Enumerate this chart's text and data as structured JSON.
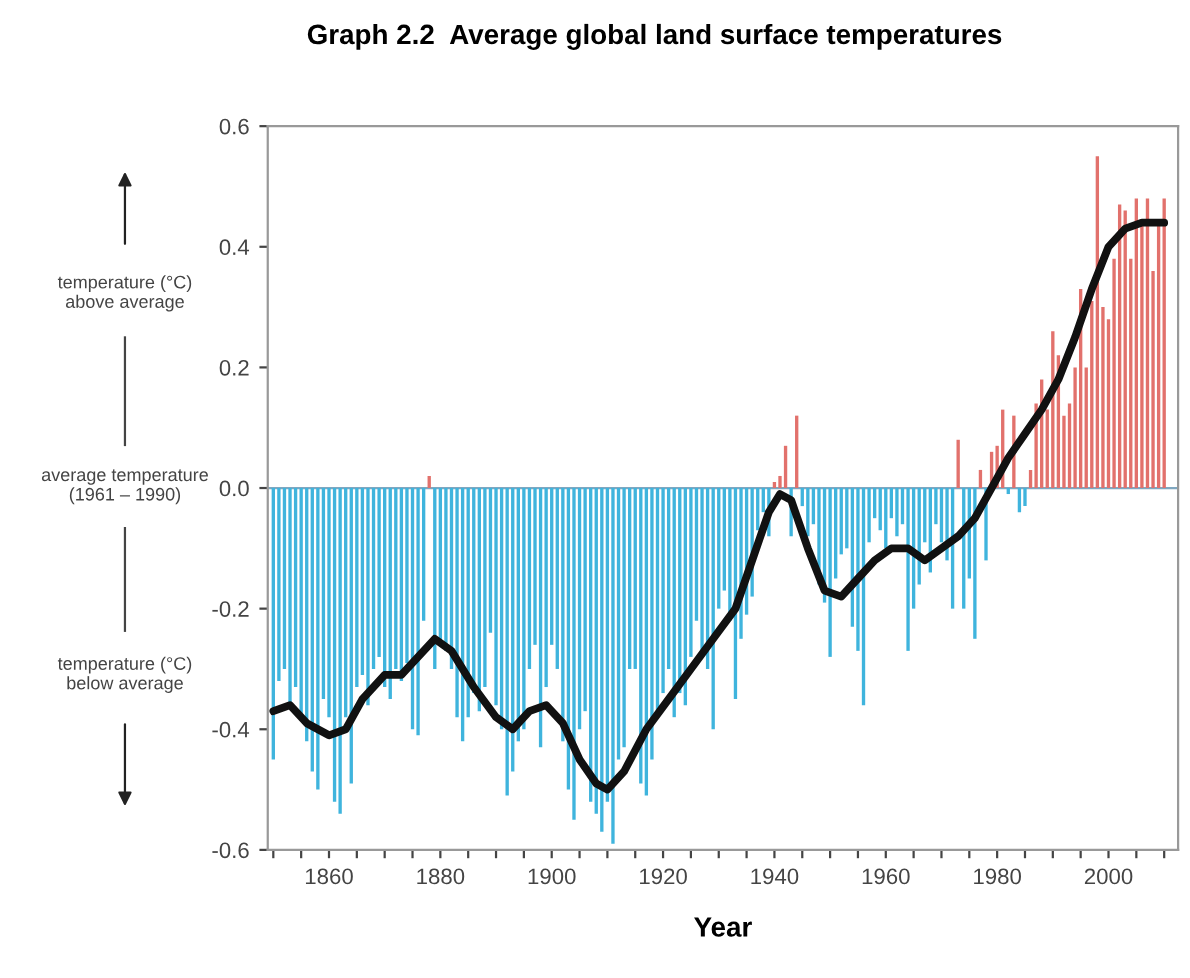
{
  "chart_data": {
    "type": "bar",
    "title": "Graph 2.2  Average global land surface temperatures",
    "xlabel": "Year",
    "annotations": [
      "temperature (°C)\nabove average",
      "average temperature\n(1961 – 1990)",
      "temperature (°C)\nbelow average"
    ],
    "x": [
      1850,
      1851,
      1852,
      1853,
      1854,
      1855,
      1856,
      1857,
      1858,
      1859,
      1860,
      1861,
      1862,
      1863,
      1864,
      1865,
      1866,
      1867,
      1868,
      1869,
      1870,
      1871,
      1872,
      1873,
      1874,
      1875,
      1876,
      1877,
      1878,
      1879,
      1880,
      1881,
      1882,
      1883,
      1884,
      1885,
      1886,
      1887,
      1888,
      1889,
      1890,
      1891,
      1892,
      1893,
      1894,
      1895,
      1896,
      1897,
      1898,
      1899,
      1900,
      1901,
      1902,
      1903,
      1904,
      1905,
      1906,
      1907,
      1908,
      1909,
      1910,
      1911,
      1912,
      1913,
      1914,
      1915,
      1916,
      1917,
      1918,
      1919,
      1920,
      1921,
      1922,
      1923,
      1924,
      1925,
      1926,
      1927,
      1928,
      1929,
      1930,
      1931,
      1932,
      1933,
      1934,
      1935,
      1936,
      1937,
      1938,
      1939,
      1940,
      1941,
      1942,
      1943,
      1944,
      1945,
      1946,
      1947,
      1948,
      1949,
      1950,
      1951,
      1952,
      1953,
      1954,
      1955,
      1956,
      1957,
      1958,
      1959,
      1960,
      1961,
      1962,
      1963,
      1964,
      1965,
      1966,
      1967,
      1968,
      1969,
      1970,
      1971,
      1972,
      1973,
      1974,
      1975,
      1976,
      1977,
      1978,
      1979,
      1980,
      1981,
      1982,
      1983,
      1984,
      1985,
      1986,
      1987,
      1988,
      1989,
      1990,
      1991,
      1992,
      1993,
      1994,
      1995,
      1996,
      1997,
      1998,
      1999,
      2000,
      2001,
      2002,
      2003,
      2004,
      2005,
      2006,
      2007,
      2008,
      2009,
      2010
    ],
    "values": [
      -0.45,
      -0.32,
      -0.3,
      -0.36,
      -0.33,
      -0.38,
      -0.42,
      -0.47,
      -0.5,
      -0.35,
      -0.38,
      -0.52,
      -0.54,
      -0.38,
      -0.49,
      -0.33,
      -0.31,
      -0.36,
      -0.3,
      -0.28,
      -0.33,
      -0.35,
      -0.3,
      -0.32,
      -0.29,
      -0.4,
      -0.41,
      -0.22,
      0.02,
      -0.3,
      -0.26,
      -0.27,
      -0.3,
      -0.38,
      -0.42,
      -0.38,
      -0.34,
      -0.37,
      -0.33,
      -0.24,
      -0.36,
      -0.4,
      -0.51,
      -0.47,
      -0.42,
      -0.4,
      -0.3,
      -0.26,
      -0.43,
      -0.33,
      -0.26,
      -0.3,
      -0.42,
      -0.5,
      -0.55,
      -0.4,
      -0.37,
      -0.52,
      -0.54,
      -0.57,
      -0.52,
      -0.59,
      -0.45,
      -0.43,
      -0.3,
      -0.3,
      -0.49,
      -0.51,
      -0.45,
      -0.38,
      -0.34,
      -0.3,
      -0.38,
      -0.34,
      -0.36,
      -0.28,
      -0.22,
      -0.28,
      -0.3,
      -0.4,
      -0.2,
      -0.17,
      -0.22,
      -0.35,
      -0.25,
      -0.21,
      -0.18,
      -0.07,
      -0.04,
      -0.08,
      0.01,
      0.02,
      0.07,
      -0.08,
      0.12,
      -0.03,
      -0.08,
      -0.06,
      -0.16,
      -0.19,
      -0.28,
      -0.15,
      -0.11,
      -0.1,
      -0.23,
      -0.27,
      -0.36,
      -0.09,
      -0.05,
      -0.07,
      -0.1,
      -0.05,
      -0.08,
      -0.06,
      -0.27,
      -0.2,
      -0.16,
      -0.09,
      -0.14,
      -0.06,
      -0.09,
      -0.12,
      -0.2,
      0.08,
      -0.2,
      -0.15,
      -0.25,
      0.03,
      -0.12,
      0.06,
      0.07,
      0.13,
      -0.01,
      0.12,
      -0.04,
      -0.03,
      0.03,
      0.14,
      0.18,
      0.13,
      0.26,
      0.22,
      0.12,
      0.14,
      0.2,
      0.33,
      0.2,
      0.31,
      0.55,
      0.3,
      0.28,
      0.38,
      0.47,
      0.46,
      0.38,
      0.48,
      0.44,
      0.48,
      0.36,
      0.44,
      0.48
    ],
    "colors": [
      "#3fb4dd",
      "#3fb4dd",
      "#3fb4dd",
      "#3fb4dd",
      "#3fb4dd",
      "#3fb4dd",
      "#3fb4dd",
      "#3fb4dd",
      "#3fb4dd",
      "#3fb4dd",
      "#3fb4dd",
      "#3fb4dd",
      "#3fb4dd",
      "#3fb4dd",
      "#3fb4dd",
      "#3fb4dd",
      "#3fb4dd",
      "#3fb4dd",
      "#3fb4dd",
      "#3fb4dd",
      "#3fb4dd",
      "#3fb4dd",
      "#3fb4dd",
      "#3fb4dd",
      "#3fb4dd",
      "#3fb4dd",
      "#3fb4dd",
      "#3fb4dd",
      "#e2716c",
      "#3fb4dd",
      "#3fb4dd",
      "#3fb4dd",
      "#3fb4dd",
      "#3fb4dd",
      "#3fb4dd",
      "#3fb4dd",
      "#3fb4dd",
      "#3fb4dd",
      "#3fb4dd",
      "#3fb4dd",
      "#3fb4dd",
      "#3fb4dd",
      "#3fb4dd",
      "#3fb4dd",
      "#3fb4dd",
      "#3fb4dd",
      "#3fb4dd",
      "#3fb4dd",
      "#3fb4dd",
      "#3fb4dd",
      "#3fb4dd",
      "#3fb4dd",
      "#3fb4dd",
      "#3fb4dd",
      "#3fb4dd",
      "#3fb4dd",
      "#3fb4dd",
      "#3fb4dd",
      "#3fb4dd",
      "#3fb4dd",
      "#3fb4dd",
      "#3fb4dd",
      "#3fb4dd",
      "#3fb4dd",
      "#3fb4dd",
      "#3fb4dd",
      "#3fb4dd",
      "#3fb4dd",
      "#3fb4dd",
      "#3fb4dd",
      "#3fb4dd",
      "#3fb4dd",
      "#3fb4dd",
      "#3fb4dd",
      "#3fb4dd",
      "#3fb4dd",
      "#3fb4dd",
      "#3fb4dd",
      "#3fb4dd",
      "#3fb4dd",
      "#3fb4dd",
      "#3fb4dd",
      "#3fb4dd",
      "#3fb4dd",
      "#3fb4dd",
      "#3fb4dd",
      "#3fb4dd",
      "#3fb4dd",
      "#3fb4dd",
      "#3fb4dd",
      "#e2716c",
      "#e2716c",
      "#e2716c",
      "#3fb4dd",
      "#e2716c",
      "#3fb4dd",
      "#3fb4dd",
      "#3fb4dd",
      "#3fb4dd",
      "#3fb4dd",
      "#3fb4dd",
      "#3fb4dd",
      "#3fb4dd",
      "#3fb4dd",
      "#3fb4dd",
      "#3fb4dd",
      "#3fb4dd",
      "#3fb4dd",
      "#3fb4dd",
      "#3fb4dd",
      "#3fb4dd",
      "#3fb4dd",
      "#3fb4dd",
      "#3fb4dd",
      "#3fb4dd",
      "#3fb4dd",
      "#3fb4dd",
      "#3fb4dd",
      "#3fb4dd",
      "#3fb4dd",
      "#3fb4dd",
      "#3fb4dd",
      "#3fb4dd",
      "#e2716c",
      "#3fb4dd",
      "#3fb4dd",
      "#3fb4dd",
      "#e2716c",
      "#3fb4dd",
      "#e2716c",
      "#e2716c",
      "#e2716c",
      "#3fb4dd",
      "#e2716c",
      "#3fb4dd",
      "#3fb4dd",
      "#e2716c",
      "#e2716c",
      "#e2716c",
      "#e2716c",
      "#e2716c",
      "#e2716c",
      "#e2716c",
      "#e2716c",
      "#e2716c",
      "#e2716c",
      "#e2716c",
      "#e2716c",
      "#e2716c",
      "#e2716c",
      "#e2716c",
      "#e2716c",
      "#e2716c",
      "#e2716c",
      "#e2716c",
      "#e2716c",
      "#e2716c",
      "#e2716c",
      "#e2716c",
      "#e2716c",
      "#e2716c"
    ],
    "ref_lines": [
      {
        "axis": "y",
        "value": 0,
        "color": "#7fa7c0"
      }
    ],
    "series": [
      {
        "type": "line",
        "color": "#111111",
        "x": [
          1850,
          1853,
          1856,
          1860,
          1863,
          1866,
          1870,
          1873,
          1876,
          1879,
          1882,
          1886,
          1890,
          1893,
          1896,
          1899,
          1902,
          1905,
          1908,
          1910,
          1913,
          1917,
          1921,
          1925,
          1929,
          1933,
          1936,
          1939,
          1941,
          1943,
          1946,
          1949,
          1952,
          1955,
          1958,
          1961,
          1964,
          1967,
          1970,
          1973,
          1976,
          1979,
          1982,
          1985,
          1988,
          1991,
          1994,
          1997,
          2000,
          2003,
          2006,
          2010
        ],
        "values": [
          -0.37,
          -0.36,
          -0.39,
          -0.41,
          -0.4,
          -0.35,
          -0.31,
          -0.31,
          -0.28,
          -0.25,
          -0.27,
          -0.33,
          -0.38,
          -0.4,
          -0.37,
          -0.36,
          -0.39,
          -0.45,
          -0.49,
          -0.5,
          -0.47,
          -0.4,
          -0.35,
          -0.3,
          -0.25,
          -0.2,
          -0.12,
          -0.04,
          -0.01,
          -0.02,
          -0.1,
          -0.17,
          -0.18,
          -0.15,
          -0.12,
          -0.1,
          -0.1,
          -0.12,
          -0.1,
          -0.08,
          -0.05,
          0.0,
          0.05,
          0.09,
          0.13,
          0.18,
          0.25,
          0.33,
          0.4,
          0.43,
          0.44,
          0.44
        ]
      }
    ],
    "xlim": [
      1849,
      2012.5
    ],
    "ylim": [
      -0.6,
      0.6
    ],
    "xticks": [
      {
        "value": 1850,
        "label": null
      },
      {
        "value": 1855,
        "label": null
      },
      1860,
      {
        "value": 1865,
        "label": null
      },
      {
        "value": 1870,
        "label": null
      },
      {
        "value": 1875,
        "label": null
      },
      1880,
      {
        "value": 1885,
        "label": null
      },
      {
        "value": 1890,
        "label": null
      },
      {
        "value": 1895,
        "label": null
      },
      1900,
      {
        "value": 1905,
        "label": null
      },
      {
        "value": 1910,
        "label": null
      },
      {
        "value": 1915,
        "label": null
      },
      1920,
      {
        "value": 1925,
        "label": null
      },
      {
        "value": 1930,
        "label": null
      },
      {
        "value": 1935,
        "label": null
      },
      1940,
      {
        "value": 1945,
        "label": null
      },
      {
        "value": 1950,
        "label": null
      },
      {
        "value": 1955,
        "label": null
      },
      1960,
      {
        "value": 1965,
        "label": null
      },
      {
        "value": 1970,
        "label": null
      },
      {
        "value": 1975,
        "label": null
      },
      1980,
      {
        "value": 1985,
        "label": null
      },
      {
        "value": 1990,
        "label": null
      },
      {
        "value": 1995,
        "label": null
      },
      2000,
      {
        "value": 2005,
        "label": null
      },
      {
        "value": 2010,
        "label": null
      }
    ],
    "yticks": [
      -0.6,
      -0.4,
      -0.2,
      {
        "value": 0,
        "label": "0.0"
      },
      0.2,
      0.4,
      0.6
    ],
    "grid": false,
    "legend": false
  }
}
